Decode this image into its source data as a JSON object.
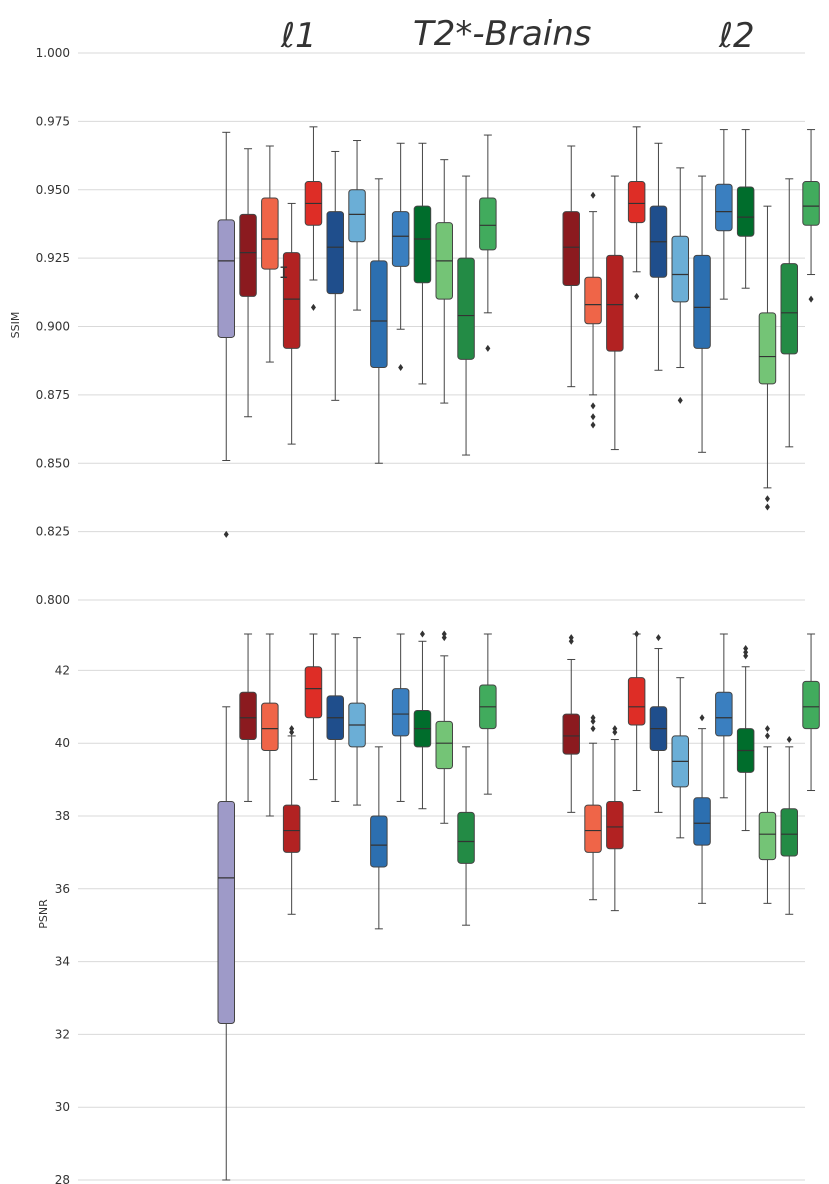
{
  "header": {
    "left_label": "ℓ1",
    "center_title": "T2*-Brains",
    "right_label": "ℓ2"
  },
  "colors": {
    "lavender": "#9e9ac8",
    "maroon": "#8b1a1f",
    "salmon": "#ef6548",
    "crimson": "#b22222",
    "red": "#de2d26",
    "navy": "#1f4e8c",
    "sky": "#6baed6",
    "steel": "#2c6fb0",
    "midblue": "#3a7fc0",
    "darkgreen": "#006d2c",
    "lightgreen": "#74c476",
    "forest": "#238b45",
    "green": "#41ab5d"
  },
  "chart_data": [
    {
      "type": "box",
      "name": "ssim-panel",
      "ylabel": "SSIM",
      "ylim": [
        0.8,
        1.0
      ],
      "yticks": [
        "0.800",
        "0.825",
        "0.850",
        "0.875",
        "0.900",
        "0.925",
        "0.950",
        "0.975",
        "1.000"
      ],
      "groups": [
        "ℓ1",
        "ℓ2"
      ],
      "boxes": [
        {
          "group": "ℓ1",
          "color": "lavender",
          "wlo": 0.851,
          "q1": 0.896,
          "med": 0.924,
          "q3": 0.939,
          "whi": 0.971,
          "outliers": [
            0.824
          ]
        },
        {
          "group": "ℓ1",
          "color": "maroon",
          "wlo": 0.867,
          "q1": 0.911,
          "med": 0.927,
          "q3": 0.941,
          "whi": 0.965,
          "outliers": []
        },
        {
          "group": "ℓ1",
          "color": "salmon",
          "wlo": 0.887,
          "q1": 0.921,
          "med": 0.932,
          "q3": 0.947,
          "whi": 0.966,
          "outliers": []
        },
        {
          "group": "ℓ1",
          "color": "crimson",
          "wlo": 0.857,
          "q1": 0.892,
          "med": 0.91,
          "q3": 0.927,
          "whi": 0.945,
          "outliers": []
        },
        {
          "group": "ℓ1",
          "color": "red",
          "wlo": 0.917,
          "q1": 0.937,
          "med": 0.945,
          "q3": 0.953,
          "whi": 0.973,
          "outliers": [
            0.907
          ]
        },
        {
          "group": "ℓ1",
          "color": "navy",
          "wlo": 0.873,
          "q1": 0.912,
          "med": 0.929,
          "q3": 0.942,
          "whi": 0.964,
          "outliers": []
        },
        {
          "group": "ℓ1",
          "color": "sky",
          "wlo": 0.906,
          "q1": 0.931,
          "med": 0.941,
          "q3": 0.95,
          "whi": 0.968,
          "outliers": []
        },
        {
          "group": "ℓ1",
          "color": "steel",
          "wlo": 0.85,
          "q1": 0.885,
          "med": 0.902,
          "q3": 0.924,
          "whi": 0.954,
          "outliers": []
        },
        {
          "group": "ℓ1",
          "color": "midblue",
          "wlo": 0.899,
          "q1": 0.922,
          "med": 0.933,
          "q3": 0.942,
          "whi": 0.967,
          "outliers": [
            0.885
          ]
        },
        {
          "group": "ℓ1",
          "color": "darkgreen",
          "wlo": 0.879,
          "q1": 0.916,
          "med": 0.932,
          "q3": 0.944,
          "whi": 0.967,
          "outliers": []
        },
        {
          "group": "ℓ1",
          "color": "lightgreen",
          "wlo": 0.872,
          "q1": 0.91,
          "med": 0.924,
          "q3": 0.938,
          "whi": 0.961,
          "outliers": []
        },
        {
          "group": "ℓ1",
          "color": "forest",
          "wlo": 0.853,
          "q1": 0.888,
          "med": 0.904,
          "q3": 0.925,
          "whi": 0.955,
          "outliers": []
        },
        {
          "group": "ℓ1",
          "color": "green",
          "wlo": 0.905,
          "q1": 0.928,
          "med": 0.937,
          "q3": 0.947,
          "whi": 0.97,
          "outliers": [
            0.892
          ]
        },
        {
          "group": "ℓ2",
          "color": "maroon",
          "wlo": 0.878,
          "q1": 0.915,
          "med": 0.929,
          "q3": 0.942,
          "whi": 0.966,
          "outliers": []
        },
        {
          "group": "ℓ2",
          "color": "salmon",
          "wlo": 0.875,
          "q1": 0.901,
          "med": 0.908,
          "q3": 0.918,
          "whi": 0.942,
          "outliers": [
            0.864,
            0.867,
            0.871,
            0.948
          ]
        },
        {
          "group": "ℓ2",
          "color": "crimson",
          "wlo": 0.855,
          "q1": 0.891,
          "med": 0.908,
          "q3": 0.926,
          "whi": 0.955,
          "outliers": []
        },
        {
          "group": "ℓ2",
          "color": "red",
          "wlo": 0.92,
          "q1": 0.938,
          "med": 0.945,
          "q3": 0.953,
          "whi": 0.973,
          "outliers": [
            0.911
          ]
        },
        {
          "group": "ℓ2",
          "color": "navy",
          "wlo": 0.884,
          "q1": 0.918,
          "med": 0.931,
          "q3": 0.944,
          "whi": 0.967,
          "outliers": []
        },
        {
          "group": "ℓ2",
          "color": "sky",
          "wlo": 0.885,
          "q1": 0.909,
          "med": 0.919,
          "q3": 0.933,
          "whi": 0.958,
          "outliers": [
            0.873
          ]
        },
        {
          "group": "ℓ2",
          "color": "steel",
          "wlo": 0.854,
          "q1": 0.892,
          "med": 0.907,
          "q3": 0.926,
          "whi": 0.955,
          "outliers": []
        },
        {
          "group": "ℓ2",
          "color": "midblue",
          "wlo": 0.91,
          "q1": 0.935,
          "med": 0.942,
          "q3": 0.952,
          "whi": 0.972,
          "outliers": []
        },
        {
          "group": "ℓ2",
          "color": "darkgreen",
          "wlo": 0.914,
          "q1": 0.933,
          "med": 0.94,
          "q3": 0.951,
          "whi": 0.972,
          "outliers": []
        },
        {
          "group": "ℓ2",
          "color": "lightgreen",
          "wlo": 0.841,
          "q1": 0.879,
          "med": 0.889,
          "q3": 0.905,
          "whi": 0.944,
          "outliers": [
            0.834,
            0.837
          ]
        },
        {
          "group": "ℓ2",
          "color": "forest",
          "wlo": 0.856,
          "q1": 0.89,
          "med": 0.905,
          "q3": 0.923,
          "whi": 0.954,
          "outliers": []
        },
        {
          "group": "ℓ2",
          "color": "green",
          "wlo": 0.919,
          "q1": 0.937,
          "med": 0.944,
          "q3": 0.953,
          "whi": 0.972,
          "outliers": [
            0.91
          ]
        }
      ]
    },
    {
      "type": "box",
      "name": "psnr-panel",
      "ylabel": "PSNR",
      "ylim": [
        28,
        43
      ],
      "yticks": [
        "28",
        "30",
        "32",
        "34",
        "36",
        "38",
        "40",
        "42"
      ],
      "groups": [
        "ℓ1",
        "ℓ2"
      ],
      "boxes": [
        {
          "group": "ℓ1",
          "color": "lavender",
          "wlo": 28.0,
          "q1": 32.3,
          "med": 36.3,
          "q3": 38.4,
          "whi": 41.0,
          "outliers": []
        },
        {
          "group": "ℓ1",
          "color": "maroon",
          "wlo": 38.4,
          "q1": 40.1,
          "med": 40.7,
          "q3": 41.4,
          "whi": 43.0,
          "outliers": []
        },
        {
          "group": "ℓ1",
          "color": "salmon",
          "wlo": 38.0,
          "q1": 39.8,
          "med": 40.4,
          "q3": 41.1,
          "whi": 43.0,
          "outliers": []
        },
        {
          "group": "ℓ1",
          "color": "crimson",
          "wlo": 35.3,
          "q1": 37.0,
          "med": 37.6,
          "q3": 38.3,
          "whi": 40.2,
          "outliers": [
            40.3,
            40.4
          ]
        },
        {
          "group": "ℓ1",
          "color": "red",
          "wlo": 39.0,
          "q1": 40.7,
          "med": 41.5,
          "q3": 42.1,
          "whi": 43.0,
          "outliers": []
        },
        {
          "group": "ℓ1",
          "color": "navy",
          "wlo": 38.4,
          "q1": 40.1,
          "med": 40.7,
          "q3": 41.3,
          "whi": 43.0,
          "outliers": []
        },
        {
          "group": "ℓ1",
          "color": "sky",
          "wlo": 38.3,
          "q1": 39.9,
          "med": 40.5,
          "q3": 41.1,
          "whi": 42.9,
          "outliers": []
        },
        {
          "group": "ℓ1",
          "color": "steel",
          "wlo": 34.9,
          "q1": 36.6,
          "med": 37.2,
          "q3": 38.0,
          "whi": 39.9,
          "outliers": []
        },
        {
          "group": "ℓ1",
          "color": "midblue",
          "wlo": 38.4,
          "q1": 40.2,
          "med": 40.8,
          "q3": 41.5,
          "whi": 43.0,
          "outliers": []
        },
        {
          "group": "ℓ1",
          "color": "darkgreen",
          "wlo": 38.2,
          "q1": 39.9,
          "med": 40.4,
          "q3": 40.9,
          "whi": 42.8,
          "outliers": [
            43.0
          ]
        },
        {
          "group": "ℓ1",
          "color": "lightgreen",
          "wlo": 37.8,
          "q1": 39.3,
          "med": 40.0,
          "q3": 40.6,
          "whi": 42.4,
          "outliers": [
            42.9,
            43.0
          ]
        },
        {
          "group": "ℓ1",
          "color": "forest",
          "wlo": 35.0,
          "q1": 36.7,
          "med": 37.3,
          "q3": 38.1,
          "whi": 39.9,
          "outliers": []
        },
        {
          "group": "ℓ1",
          "color": "green",
          "wlo": 38.6,
          "q1": 40.4,
          "med": 41.0,
          "q3": 41.6,
          "whi": 43.0,
          "outliers": []
        },
        {
          "group": "ℓ2",
          "color": "maroon",
          "wlo": 38.1,
          "q1": 39.7,
          "med": 40.2,
          "q3": 40.8,
          "whi": 42.3,
          "outliers": [
            42.8,
            42.9
          ]
        },
        {
          "group": "ℓ2",
          "color": "salmon",
          "wlo": 35.7,
          "q1": 37.0,
          "med": 37.6,
          "q3": 38.3,
          "whi": 40.0,
          "outliers": [
            40.4,
            40.6,
            40.7
          ]
        },
        {
          "group": "ℓ2",
          "color": "crimson",
          "wlo": 35.4,
          "q1": 37.1,
          "med": 37.7,
          "q3": 38.4,
          "whi": 40.1,
          "outliers": [
            40.3,
            40.4
          ]
        },
        {
          "group": "ℓ2",
          "color": "red",
          "wlo": 38.7,
          "q1": 40.5,
          "med": 41.0,
          "q3": 41.8,
          "whi": 43.0,
          "outliers": [
            43.0
          ]
        },
        {
          "group": "ℓ2",
          "color": "navy",
          "wlo": 38.1,
          "q1": 39.8,
          "med": 40.4,
          "q3": 41.0,
          "whi": 42.6,
          "outliers": [
            42.9
          ]
        },
        {
          "group": "ℓ2",
          "color": "sky",
          "wlo": 37.4,
          "q1": 38.8,
          "med": 39.5,
          "q3": 40.2,
          "whi": 41.8,
          "outliers": []
        },
        {
          "group": "ℓ2",
          "color": "steel",
          "wlo": 35.6,
          "q1": 37.2,
          "med": 37.8,
          "q3": 38.5,
          "whi": 40.4,
          "outliers": [
            40.7
          ]
        },
        {
          "group": "ℓ2",
          "color": "midblue",
          "wlo": 38.5,
          "q1": 40.2,
          "med": 40.7,
          "q3": 41.4,
          "whi": 43.0,
          "outliers": []
        },
        {
          "group": "ℓ2",
          "color": "darkgreen",
          "wlo": 37.6,
          "q1": 39.2,
          "med": 39.8,
          "q3": 40.4,
          "whi": 42.1,
          "outliers": [
            42.4,
            42.5,
            42.6
          ]
        },
        {
          "group": "ℓ2",
          "color": "lightgreen",
          "wlo": 35.6,
          "q1": 36.8,
          "med": 37.5,
          "q3": 38.1,
          "whi": 39.9,
          "outliers": [
            40.2,
            40.4
          ]
        },
        {
          "group": "ℓ2",
          "color": "forest",
          "wlo": 35.3,
          "q1": 36.9,
          "med": 37.5,
          "q3": 38.2,
          "whi": 39.9,
          "outliers": [
            40.1
          ]
        },
        {
          "group": "ℓ2",
          "color": "green",
          "wlo": 38.7,
          "q1": 40.4,
          "med": 41.0,
          "q3": 41.7,
          "whi": 43.0,
          "outliers": []
        }
      ]
    }
  ]
}
